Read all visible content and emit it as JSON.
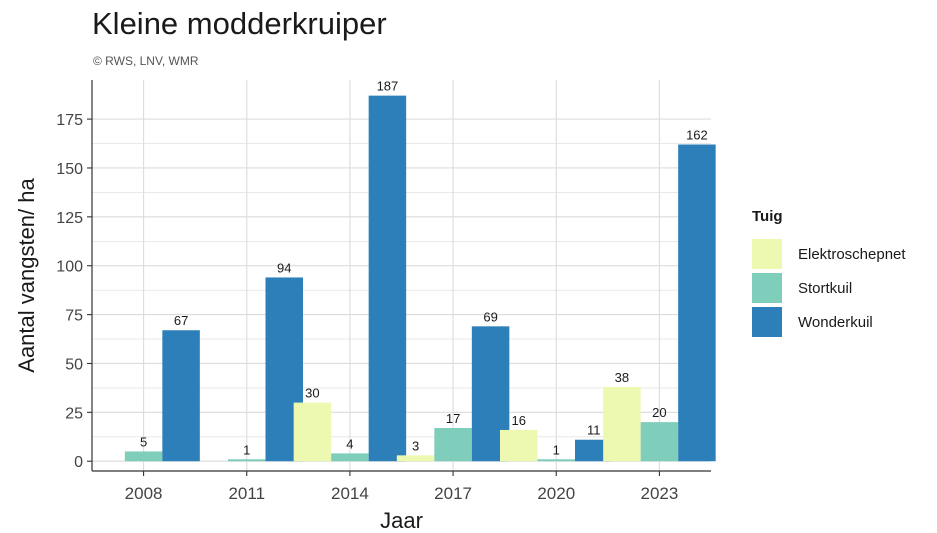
{
  "chart_data": {
    "type": "bar",
    "title": "Kleine modderkruiper",
    "subtitle": "© RWS, LNV, WMR",
    "xlabel": "Jaar",
    "ylabel": "Aantal vangsten/ ha",
    "categories": [
      "2008",
      "2011",
      "2014",
      "2017",
      "2020",
      "2023"
    ],
    "ylim": [
      -5,
      195
    ],
    "yticks": [
      0,
      25,
      50,
      75,
      100,
      125,
      150,
      175
    ],
    "grid": true,
    "legend_title": "Tuig",
    "legend_position": "right",
    "series": [
      {
        "name": "Elektroschepnet",
        "color": "#edf8b1",
        "values": [
          null,
          null,
          30,
          3,
          16,
          38
        ]
      },
      {
        "name": "Stortkuil",
        "color": "#7fcdbb",
        "values": [
          5,
          1,
          4,
          17,
          1,
          20
        ]
      },
      {
        "name": "Wonderkuil",
        "color": "#2c7fb8",
        "values": [
          67,
          94,
          187,
          69,
          11,
          162
        ]
      }
    ]
  }
}
